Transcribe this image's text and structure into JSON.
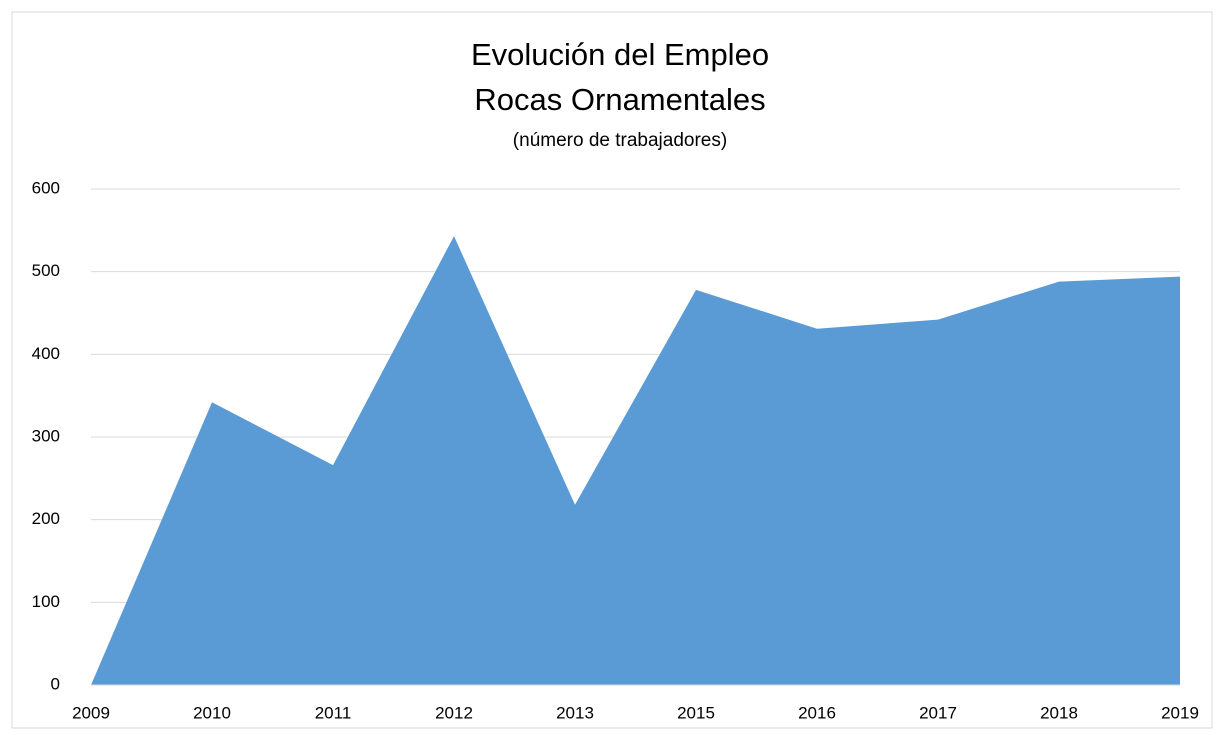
{
  "chart_data": {
    "type": "area",
    "title": "Evolución del Empleo",
    "subtitle": "Rocas Ornamentales",
    "note": "(número de trabajadores)",
    "categories": [
      "2009",
      "2010",
      "2011",
      "2012",
      "2013",
      "2015",
      "2016",
      "2017",
      "2018",
      "2019"
    ],
    "values": [
      0,
      342,
      266,
      543,
      218,
      478,
      431,
      442,
      488,
      494
    ],
    "color": "#5b9bd5",
    "ylim": [
      0,
      600
    ],
    "yticks": [
      0,
      100,
      200,
      300,
      400,
      500,
      600
    ],
    "grid": true
  }
}
